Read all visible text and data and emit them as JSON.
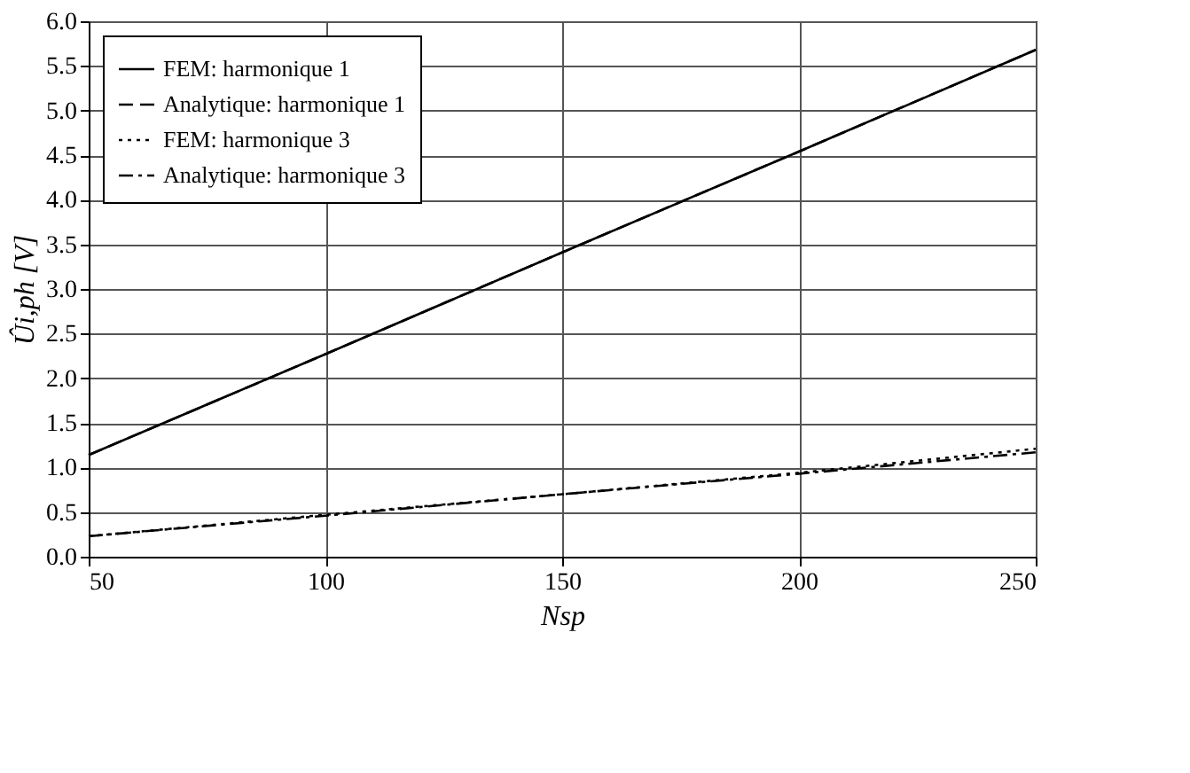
{
  "chart_data": {
    "type": "line",
    "xlabel": "Nsp",
    "ylabel": "Ûi,ph [V]",
    "x": [
      50,
      100,
      150,
      200,
      250
    ],
    "series": [
      {
        "name": "FEM: harmonique 1",
        "color": "#000000",
        "line_style": "solid",
        "values": [
          1.14,
          2.27,
          3.41,
          4.54,
          5.68
        ]
      },
      {
        "name": "Analytique: harmonique 1",
        "color": "#000000",
        "line_style": "dashed",
        "values": [
          1.14,
          2.27,
          3.41,
          4.54,
          5.68
        ]
      },
      {
        "name": "FEM: harmonique 3",
        "color": "#000000",
        "line_style": "dotted",
        "values": [
          0.23,
          0.47,
          0.7,
          0.94,
          1.21
        ]
      },
      {
        "name": "Analytique: harmonique 3",
        "color": "#000000",
        "line_style": "dashdot",
        "values": [
          0.23,
          0.46,
          0.7,
          0.93,
          1.17
        ]
      }
    ],
    "xlim": [
      50,
      250
    ],
    "xticks": [
      50,
      100,
      150,
      200,
      250
    ],
    "ylim": [
      0,
      6
    ],
    "yticks": [
      {
        "value": 0,
        "label": "0.0"
      },
      {
        "value": 0.5,
        "label": "0.5"
      },
      {
        "value": 1,
        "label": "1.0"
      },
      {
        "value": 1.5,
        "label": "1.5"
      },
      {
        "value": 2,
        "label": "2.0"
      },
      {
        "value": 2.5,
        "label": "2.5"
      },
      {
        "value": 3,
        "label": "3.0"
      },
      {
        "value": 3.5,
        "label": "3.5"
      },
      {
        "value": 4,
        "label": "4.0"
      },
      {
        "value": 4.5,
        "label": "4.5"
      },
      {
        "value": 5,
        "label": "5.0"
      },
      {
        "value": 5.5,
        "label": "5.5"
      },
      {
        "value": 6,
        "label": "6.0"
      }
    ],
    "grid": true,
    "legend": "top left",
    "marker": "none"
  }
}
